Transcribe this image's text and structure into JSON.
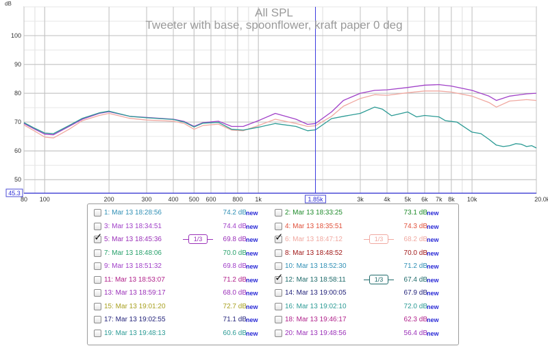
{
  "chart_data": {
    "type": "line",
    "title": "All SPL",
    "subtitle": "Tweeter with base, spoonflower, kraft paper 0 deg",
    "ylabel": "dB",
    "xunit": "Hz",
    "xscale": "log",
    "xlim": [
      80,
      20000
    ],
    "ylim": [
      45.3,
      110
    ],
    "yticks": [
      50,
      60,
      70,
      80,
      90,
      100
    ],
    "xticks": [
      {
        "v": 80,
        "label": "80"
      },
      {
        "v": 100,
        "label": "100"
      },
      {
        "v": 200,
        "label": "200"
      },
      {
        "v": 300,
        "label": "300"
      },
      {
        "v": 400,
        "label": "400"
      },
      {
        "v": 500,
        "label": "500"
      },
      {
        "v": 600,
        "label": "600"
      },
      {
        "v": 800,
        "label": "800"
      },
      {
        "v": 1000,
        "label": "1k"
      },
      {
        "v": 3000,
        "label": "3k"
      },
      {
        "v": 4000,
        "label": "4k"
      },
      {
        "v": 5000,
        "label": "5k"
      },
      {
        "v": 6000,
        "label": "6k"
      },
      {
        "v": 7000,
        "label": "7k"
      },
      {
        "v": 8000,
        "label": "8k"
      },
      {
        "v": 10000,
        "label": "10k"
      },
      {
        "v": 20000,
        "label": "20.0k Hz"
      }
    ],
    "y_cursor_label": "45.3",
    "cursor": {
      "x": 1850,
      "label": "1.85k"
    },
    "grid": true,
    "series": [
      {
        "color": "#a040c8",
        "points": [
          [
            80,
            69.5
          ],
          [
            90,
            67.5
          ],
          [
            100,
            65.8
          ],
          [
            110,
            65.6
          ],
          [
            130,
            68.5
          ],
          [
            150,
            71
          ],
          [
            180,
            73
          ],
          [
            200,
            73.6
          ],
          [
            250,
            72
          ],
          [
            300,
            71.6
          ],
          [
            400,
            71
          ],
          [
            450,
            70.2
          ],
          [
            500,
            68.5
          ],
          [
            550,
            69.8
          ],
          [
            650,
            70.3
          ],
          [
            750,
            68.5
          ],
          [
            850,
            68.5
          ],
          [
            1000,
            70.5
          ],
          [
            1200,
            73
          ],
          [
            1500,
            71
          ],
          [
            1700,
            69.2
          ],
          [
            1850,
            69.5
          ],
          [
            2200,
            73.5
          ],
          [
            2500,
            77.5
          ],
          [
            3000,
            80
          ],
          [
            3500,
            81
          ],
          [
            4000,
            81.2
          ],
          [
            5000,
            82
          ],
          [
            6000,
            82.8
          ],
          [
            7000,
            83
          ],
          [
            8000,
            82.5
          ],
          [
            10000,
            81
          ],
          [
            12000,
            79
          ],
          [
            13000,
            77.5
          ],
          [
            15000,
            79
          ],
          [
            18000,
            79.8
          ],
          [
            20000,
            80
          ]
        ]
      },
      {
        "color": "#f0a8a0",
        "points": [
          [
            80,
            69
          ],
          [
            90,
            66.8
          ],
          [
            100,
            64.8
          ],
          [
            110,
            64.5
          ],
          [
            130,
            67.5
          ],
          [
            150,
            70.5
          ],
          [
            180,
            72.3
          ],
          [
            200,
            73
          ],
          [
            250,
            71.3
          ],
          [
            300,
            70.7
          ],
          [
            400,
            70.3
          ],
          [
            450,
            69.5
          ],
          [
            500,
            67.5
          ],
          [
            550,
            68.8
          ],
          [
            650,
            69.3
          ],
          [
            750,
            67.2
          ],
          [
            850,
            67
          ],
          [
            1000,
            68.8
          ],
          [
            1200,
            71
          ],
          [
            1500,
            69.5
          ],
          [
            1700,
            68.5
          ],
          [
            1850,
            68.7
          ],
          [
            2200,
            72
          ],
          [
            2500,
            75.5
          ],
          [
            3000,
            78.2
          ],
          [
            3500,
            79.5
          ],
          [
            4000,
            79.3
          ],
          [
            5000,
            80.2
          ],
          [
            6000,
            80.8
          ],
          [
            7000,
            80.8
          ],
          [
            8000,
            80.4
          ],
          [
            10000,
            79
          ],
          [
            12000,
            76.8
          ],
          [
            13000,
            75.2
          ],
          [
            15000,
            77.3
          ],
          [
            18000,
            77.8
          ],
          [
            20000,
            77.5
          ]
        ]
      },
      {
        "color": "#2a9a94",
        "points": [
          [
            80,
            69.8
          ],
          [
            90,
            67.8
          ],
          [
            100,
            66.2
          ],
          [
            110,
            66
          ],
          [
            130,
            68.8
          ],
          [
            150,
            71.3
          ],
          [
            180,
            73.2
          ],
          [
            200,
            73.8
          ],
          [
            250,
            72
          ],
          [
            300,
            71.5
          ],
          [
            400,
            70.9
          ],
          [
            450,
            70
          ],
          [
            500,
            68.3
          ],
          [
            550,
            69.6
          ],
          [
            650,
            69.9
          ],
          [
            750,
            67.5
          ],
          [
            850,
            67.2
          ],
          [
            1000,
            68.2
          ],
          [
            1200,
            69.5
          ],
          [
            1500,
            68.5
          ],
          [
            1700,
            67
          ],
          [
            1850,
            67.3
          ],
          [
            2200,
            71.2
          ],
          [
            2500,
            72
          ],
          [
            3000,
            73
          ],
          [
            3500,
            75.2
          ],
          [
            3800,
            74.5
          ],
          [
            4200,
            72.2
          ],
          [
            5000,
            73.5
          ],
          [
            5500,
            71.8
          ],
          [
            6000,
            72.3
          ],
          [
            7000,
            71.8
          ],
          [
            7500,
            70.5
          ],
          [
            8500,
            70
          ],
          [
            10000,
            66.5
          ],
          [
            11000,
            66
          ],
          [
            12000,
            64
          ],
          [
            13000,
            62
          ],
          [
            14000,
            61.5
          ],
          [
            15000,
            61.8
          ],
          [
            16000,
            62.5
          ],
          [
            17000,
            62.3
          ],
          [
            18000,
            61.5
          ],
          [
            19000,
            61.8
          ],
          [
            20000,
            61
          ]
        ]
      }
    ]
  },
  "legend": {
    "new_label": "new",
    "left": [
      {
        "label": "1: Mar 13 18:28:56",
        "value": "74.2 dB",
        "checked": false,
        "color": "#2f8fb5"
      },
      {
        "label": "3: Mar 13 18:34:51",
        "value": "74.4 dB",
        "checked": false,
        "color": "#a040c8"
      },
      {
        "label": "5: Mar 13 18:45:36",
        "value": "69.8 dB",
        "checked": true,
        "color": "#9a30b8",
        "smoothing": "1/3"
      },
      {
        "label": "7: Mar 13 18:48:06",
        "value": "70.0 dB",
        "checked": false,
        "color": "#26a06a"
      },
      {
        "label": "9: Mar 13 18:51:32",
        "value": "69.8 dB",
        "checked": false,
        "color": "#a040c8"
      },
      {
        "label": "11: Mar 13 18:53:07",
        "value": "71.2 dB",
        "checked": false,
        "color": "#b0208a"
      },
      {
        "label": "13: Mar 13 18:59:17",
        "value": "68.0 dB",
        "checked": false,
        "color": "#9a30b8"
      },
      {
        "label": "15: Mar 13 19:01:20",
        "value": "72.7 dB",
        "checked": false,
        "color": "#a8a020"
      },
      {
        "label": "17: Mar 13 19:02:55",
        "value": "71.1 dB",
        "checked": false,
        "color": "#23237a"
      },
      {
        "label": "19: Mar 13 19:48:13",
        "value": "60.6 dB",
        "checked": false,
        "color": "#2a9a94"
      }
    ],
    "right": [
      {
        "label": "2: Mar 13 18:33:25",
        "value": "73.1 dB",
        "checked": false,
        "color": "#1e8a2a"
      },
      {
        "label": "4: Mar 13 18:35:51",
        "value": "74.3 dB",
        "checked": false,
        "color": "#e0503a"
      },
      {
        "label": "6: Mar 13 18:47:12",
        "value": "68.2 dB",
        "checked": true,
        "color": "#f0a8a0",
        "smoothing": "1/3"
      },
      {
        "label": "8: Mar 13 18:48:52",
        "value": "70.0 dB",
        "checked": false,
        "color": "#a01818"
      },
      {
        "label": "10: Mar 13 18:52:30",
        "value": "71.2 dB",
        "checked": false,
        "color": "#2f8fb5"
      },
      {
        "label": "12: Mar 13 18:58:11",
        "value": "67.4 dB",
        "checked": true,
        "color": "#1e6a6a",
        "smoothing": "1/3"
      },
      {
        "label": "14: Mar 13 19:00:05",
        "value": "67.9 dB",
        "checked": false,
        "color": "#23237a"
      },
      {
        "label": "16: Mar 13 19:02:10",
        "value": "72.0 dB",
        "checked": false,
        "color": "#2a9a94"
      },
      {
        "label": "18: Mar 13 19:46:17",
        "value": "62.3 dB",
        "checked": false,
        "color": "#b0208a"
      },
      {
        "label": "20: Mar 13 19:48:56",
        "value": "56.4 dB",
        "checked": false,
        "color": "#9a30b8"
      }
    ]
  }
}
